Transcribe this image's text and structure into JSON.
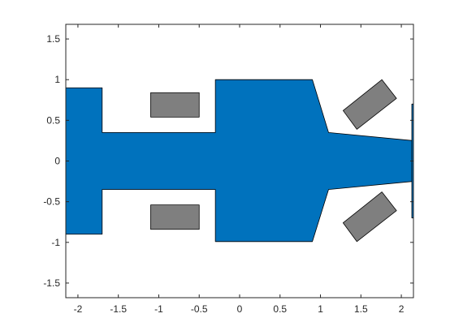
{
  "chart_data": {
    "type": "polygon-plot",
    "title": "",
    "xlabel": "",
    "ylabel": "",
    "xlim": [
      -2.15,
      2.15
    ],
    "ylim": [
      -1.68,
      1.68
    ],
    "grid": false,
    "legend": "none",
    "x_ticks": [
      -2,
      -1.5,
      -1,
      -0.5,
      0,
      0.5,
      1,
      1.5,
      2
    ],
    "x_tick_labels": [
      "-2",
      "-1.5",
      "-1",
      "-0.5",
      "0",
      "0.5",
      "1",
      "1.5",
      "2"
    ],
    "y_ticks": [
      1.5,
      1,
      0.5,
      0,
      -0.5,
      -1,
      -1.5
    ],
    "y_tick_labels": [
      "1.5",
      "1",
      "0.5",
      "0",
      "-0.5",
      "-1",
      "-1.5"
    ],
    "colors": {
      "body": "#0072BD",
      "wheel": "#7f7f7f",
      "edge": "#000000",
      "axis": "#262626"
    },
    "shapes": [
      {
        "name": "car-body",
        "fill": "#0072BD",
        "points": [
          [
            -2.15,
            0.9
          ],
          [
            -1.7,
            0.9
          ],
          [
            -1.7,
            0.35
          ],
          [
            -0.3,
            0.35
          ],
          [
            -0.3,
            1.0
          ],
          [
            0.9,
            1.0
          ],
          [
            1.1,
            0.35
          ],
          [
            2.15,
            0.25
          ],
          [
            2.15,
            -0.25
          ],
          [
            1.1,
            -0.35
          ],
          [
            0.9,
            -0.99
          ],
          [
            -0.3,
            -0.99
          ],
          [
            -0.3,
            -0.35
          ],
          [
            -1.7,
            -0.35
          ],
          [
            -1.7,
            -0.9
          ],
          [
            -2.15,
            -0.9
          ]
        ]
      },
      {
        "name": "rear-wheel-top",
        "fill": "#7f7f7f",
        "points": [
          [
            -1.1,
            0.84
          ],
          [
            -0.5,
            0.84
          ],
          [
            -0.5,
            0.54
          ],
          [
            -1.1,
            0.54
          ]
        ]
      },
      {
        "name": "rear-wheel-bottom",
        "fill": "#7f7f7f",
        "points": [
          [
            -1.1,
            -0.54
          ],
          [
            -0.5,
            -0.54
          ],
          [
            -0.5,
            -0.84
          ],
          [
            -1.1,
            -0.84
          ]
        ]
      },
      {
        "name": "front-wheel-top",
        "fill": "#7f7f7f",
        "points": [
          [
            1.45,
            0.39
          ],
          [
            1.94,
            0.77
          ],
          [
            1.76,
            1.0
          ],
          [
            1.28,
            0.62
          ]
        ]
      },
      {
        "name": "front-wheel-bottom",
        "fill": "#7f7f7f",
        "points": [
          [
            1.45,
            -0.99
          ],
          [
            1.94,
            -0.61
          ],
          [
            1.76,
            -0.38
          ],
          [
            1.28,
            -0.76
          ]
        ]
      },
      {
        "name": "front-wing",
        "fill": "#0072BD",
        "points": [
          [
            2.13,
            0.7
          ],
          [
            2.15,
            0.7
          ],
          [
            2.15,
            -0.7
          ],
          [
            2.13,
            -0.7
          ]
        ]
      }
    ]
  }
}
